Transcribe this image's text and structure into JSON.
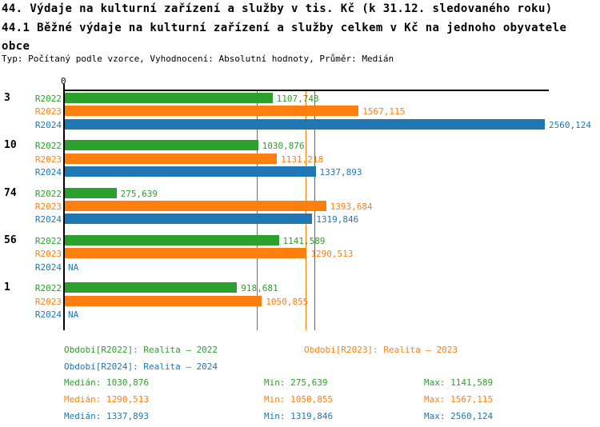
{
  "title": {
    "line1": "44. Výdaje na kulturní zařízení a služby v tis. Kč (k 31.12. sledovaného roku)",
    "line2": "44.1 Běžné výdaje na kulturní zařízení a služby celkem v Kč na jednoho obyvatele",
    "line3": "obce",
    "meta": "Typ: Počítaný podle vzorce, Vyhodnocení: Absolutní hodnoty, Průměr: Medián"
  },
  "chart_data": {
    "type": "bar",
    "orientation": "horizontal",
    "x_axis": {
      "zero_label": "0",
      "min": 0,
      "max": 2586,
      "grid": false
    },
    "na_label": "NA",
    "series": [
      {
        "key": "R2022",
        "legend": "Období[R2022]: Realita – 2022",
        "color": "#2ca02c",
        "median": 1030.876
      },
      {
        "key": "R2023",
        "legend": "Období[R2023]: Realita – 2023",
        "color": "#ff7f0e",
        "median": 1290.513
      },
      {
        "key": "R2024",
        "legend": "Období[R2024]: Realita – 2024",
        "color": "#1f77b4",
        "median": 1337.893
      }
    ],
    "groups": [
      {
        "label": "3",
        "values": [
          1107.743,
          1567.115,
          2560.124
        ],
        "displays": [
          "1107,743",
          "1567,115",
          "2560,124"
        ]
      },
      {
        "label": "10",
        "values": [
          1030.876,
          1131.218,
          1337.893
        ],
        "displays": [
          "1030,876",
          "1131,218",
          "1337,893"
        ]
      },
      {
        "label": "74",
        "values": [
          275.639,
          1393.684,
          1319.846
        ],
        "displays": [
          "275,639",
          "1393,684",
          "1319,846"
        ]
      },
      {
        "label": "56",
        "values": [
          1141.589,
          1290.513,
          null
        ],
        "displays": [
          "1141,589",
          "1290,513",
          "NA"
        ]
      },
      {
        "label": "1",
        "values": [
          918.681,
          1050.855,
          null
        ],
        "displays": [
          "918,681",
          "1050,855",
          "NA"
        ]
      }
    ],
    "stats": [
      {
        "series": "R2022",
        "median_text": "Medián: 1030,876",
        "min_text": "Min: 275,639",
        "max_text": "Max: 1141,589"
      },
      {
        "series": "R2023",
        "median_text": "Medián: 1290,513",
        "min_text": "Min: 1050,855",
        "max_text": "Max: 1567,115"
      },
      {
        "series": "R2024",
        "median_text": "Medián: 1337,893",
        "min_text": "Min: 1319,846",
        "max_text": "Max: 2560,124"
      }
    ]
  }
}
